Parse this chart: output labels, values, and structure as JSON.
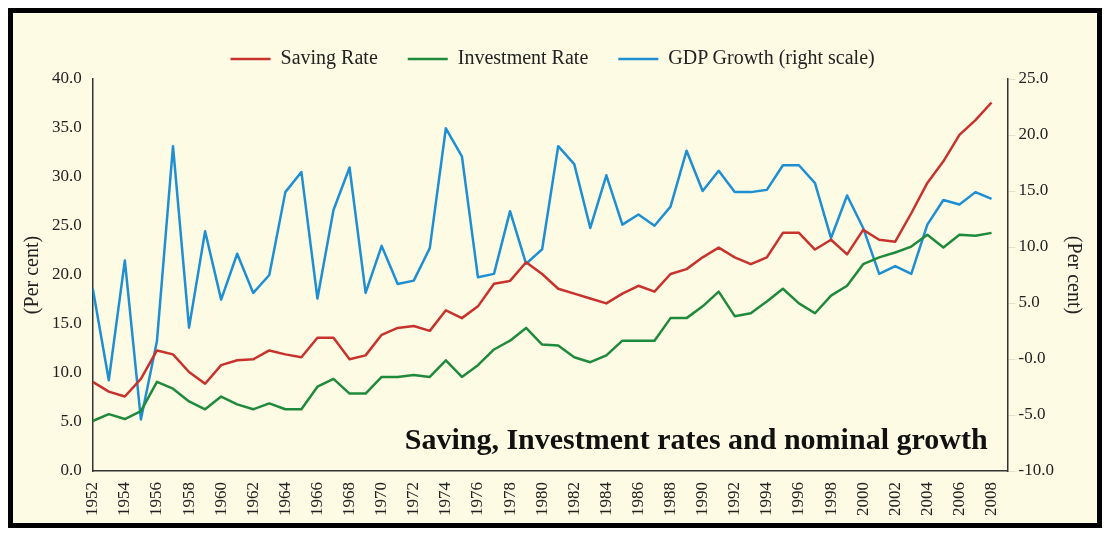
{
  "chart_data": {
    "type": "line",
    "annotations": [
      "Saving, Investment rates and nominal growth"
    ],
    "ylabel": "(Per cent)",
    "y2label": "(Per cent)",
    "x": [
      1952,
      1953,
      1954,
      1955,
      1956,
      1957,
      1958,
      1959,
      1960,
      1961,
      1962,
      1963,
      1964,
      1965,
      1966,
      1967,
      1968,
      1969,
      1970,
      1971,
      1972,
      1973,
      1974,
      1975,
      1976,
      1977,
      1978,
      1979,
      1980,
      1981,
      1982,
      1983,
      1984,
      1985,
      1986,
      1987,
      1988,
      1989,
      1990,
      1991,
      1992,
      1993,
      1994,
      1995,
      1996,
      1997,
      1998,
      1999,
      2000,
      2001,
      2002,
      2003,
      2004,
      2005,
      2006,
      2007,
      2008
    ],
    "xlim": [
      1952,
      2009
    ],
    "xticks": [
      1952,
      1954,
      1956,
      1958,
      1960,
      1962,
      1964,
      1966,
      1968,
      1970,
      1972,
      1974,
      1976,
      1978,
      1980,
      1982,
      1984,
      1986,
      1988,
      1990,
      1992,
      1994,
      1996,
      1998,
      2000,
      2002,
      2004,
      2006,
      2008
    ],
    "ylim": [
      0,
      40
    ],
    "yticks": [
      {
        "value": 0,
        "label": "0.0"
      },
      {
        "value": 5,
        "label": "5.0"
      },
      {
        "value": 10,
        "label": "10.0"
      },
      {
        "value": 15,
        "label": "15.0"
      },
      {
        "value": 20,
        "label": "20.0"
      },
      {
        "value": 25,
        "label": "25.0"
      },
      {
        "value": 30,
        "label": "30.0"
      },
      {
        "value": 35,
        "label": "35.0"
      },
      {
        "value": 40,
        "label": "40.0"
      }
    ],
    "y2lim": [
      -10,
      25
    ],
    "y2ticks": [
      {
        "value": -10,
        "label": "-10.0"
      },
      {
        "value": -5,
        "label": "-5.0"
      },
      {
        "value": 0,
        "label": "-0.0"
      },
      {
        "value": 5,
        "label": "5.0"
      },
      {
        "value": 10,
        "label": "10.0"
      },
      {
        "value": 15,
        "label": "15.0"
      },
      {
        "value": 20,
        "label": "20.0"
      },
      {
        "value": 25,
        "label": "25.0"
      }
    ],
    "grid": false,
    "legend": "top",
    "marker": "none",
    "line_style": "solid",
    "series": [
      {
        "name": "Saving Rate",
        "color": "#c8322d",
        "values": [
          9.1,
          8.1,
          7.6,
          9.4,
          12.3,
          11.9,
          10.1,
          8.9,
          10.8,
          11.3,
          11.4,
          12.3,
          11.9,
          11.6,
          13.6,
          13.6,
          11.4,
          11.8,
          13.9,
          14.6,
          14.8,
          14.3,
          16.4,
          15.6,
          16.8,
          19.1,
          19.4,
          21.3,
          20.1,
          18.6,
          18.1,
          17.6,
          17.1,
          18.1,
          18.9,
          18.3,
          20.1,
          20.6,
          21.8,
          22.8,
          21.8,
          21.1,
          21.8,
          24.3,
          24.3,
          22.6,
          23.6,
          22.1,
          24.6,
          23.6,
          23.4,
          26.3,
          29.4,
          31.6,
          34.3,
          35.8,
          37.6
        ]
      },
      {
        "name": "Investment Rate",
        "color": "#1f8a3c",
        "values": [
          5.1,
          5.8,
          5.3,
          6.1,
          9.1,
          8.4,
          7.1,
          6.3,
          7.6,
          6.8,
          6.3,
          6.9,
          6.3,
          6.3,
          8.6,
          9.4,
          7.9,
          7.9,
          9.6,
          9.6,
          9.8,
          9.6,
          11.3,
          9.6,
          10.8,
          12.4,
          13.3,
          14.6,
          12.9,
          12.8,
          11.6,
          11.1,
          11.8,
          13.3,
          13.3,
          13.3,
          15.6,
          15.6,
          16.8,
          18.3,
          15.8,
          16.1,
          17.3,
          18.6,
          17.1,
          16.1,
          17.9,
          18.9,
          21.1,
          21.8,
          22.3,
          22.9,
          24.1,
          22.8,
          24.1,
          24.0,
          24.3
        ]
      },
      {
        "name": "GDP Growth (right scale)",
        "color": "#1e8fd2",
        "axis": "y2",
        "values": [
          6.3,
          -1.9,
          8.8,
          -5.4,
          1.6,
          19.0,
          2.8,
          11.4,
          5.3,
          9.4,
          5.9,
          7.5,
          14.9,
          16.7,
          5.4,
          13.3,
          17.1,
          5.9,
          10.1,
          6.7,
          7.0,
          9.9,
          20.6,
          18.1,
          7.3,
          7.6,
          13.2,
          8.5,
          9.8,
          19.0,
          17.4,
          11.7,
          16.4,
          12.0,
          12.9,
          11.9,
          13.6,
          18.6,
          15.0,
          16.8,
          14.9,
          14.9,
          15.1,
          17.3,
          17.3,
          15.7,
          10.8,
          14.6,
          11.7,
          7.6,
          8.3,
          7.6,
          12.0,
          14.2,
          13.8,
          14.9,
          14.3
        ]
      }
    ]
  }
}
